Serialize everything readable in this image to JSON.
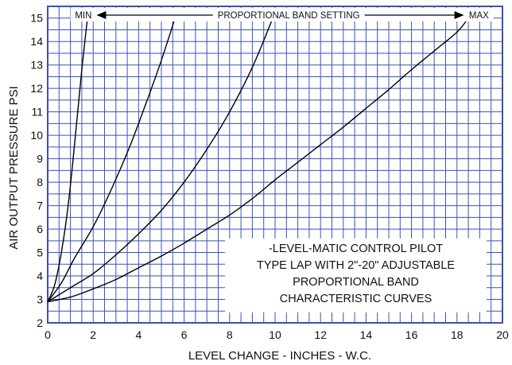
{
  "chart_data": {
    "type": "line",
    "xlabel": "LEVEL CHANGE - INCHES - W.C.",
    "ylabel": "AIR OUTPUT PRESSURE PSI",
    "xlim": [
      0,
      20
    ],
    "ylim": [
      2,
      15.5
    ],
    "xticks": [
      0,
      2,
      4,
      6,
      8,
      10,
      12,
      14,
      16,
      18,
      20
    ],
    "yticks": [
      2,
      3,
      4,
      5,
      6,
      7,
      8,
      9,
      10,
      11,
      12,
      13,
      14,
      15
    ],
    "x_minor_step": 0.5,
    "y_minor_step": 0.5,
    "grid": true,
    "band_label": {
      "min": "MIN",
      "text": "PROPORTIONAL BAND SETTING",
      "max": "MAX"
    },
    "annotation_lines": [
      "-LEVEL-MATIC CONTROL PILOT",
      "TYPE LAP WITH 2\"-20\" ADJUSTABLE",
      "PROPORTIONAL BAND",
      "CHARACTERISTIC CURVES"
    ],
    "series": [
      {
        "x": [
          0,
          0.3,
          0.6,
          0.9,
          1.2,
          1.5,
          1.75
        ],
        "y": [
          2.9,
          3.6,
          5.0,
          7.0,
          9.8,
          12.8,
          15.0
        ]
      },
      {
        "x": [
          0,
          0.6,
          1.2,
          2.0,
          2.8,
          3.6,
          4.3,
          5.0,
          5.6
        ],
        "y": [
          2.9,
          3.7,
          4.8,
          6.1,
          7.7,
          9.5,
          11.3,
          13.2,
          15.0
        ]
      },
      {
        "x": [
          0,
          1.0,
          2.0,
          3.0,
          4.0,
          5.0,
          6.0,
          7.0,
          8.0,
          9.0,
          9.9
        ],
        "y": [
          2.9,
          3.5,
          4.1,
          4.9,
          5.8,
          6.8,
          8.0,
          9.4,
          11.0,
          12.9,
          15.0
        ]
      },
      {
        "x": [
          0,
          1.0,
          2.0,
          3.0,
          4.0,
          5.0,
          6.0,
          7.0,
          8.0,
          9.0,
          10.0,
          11.0,
          12.0,
          13.0,
          14.0,
          15.0,
          16.0,
          17.0,
          18.0,
          18.5
        ],
        "y": [
          2.9,
          3.1,
          3.45,
          3.85,
          4.35,
          4.85,
          5.4,
          6.0,
          6.6,
          7.3,
          8.1,
          8.85,
          9.6,
          10.35,
          11.15,
          11.95,
          12.8,
          13.6,
          14.4,
          15.0
        ]
      }
    ]
  }
}
